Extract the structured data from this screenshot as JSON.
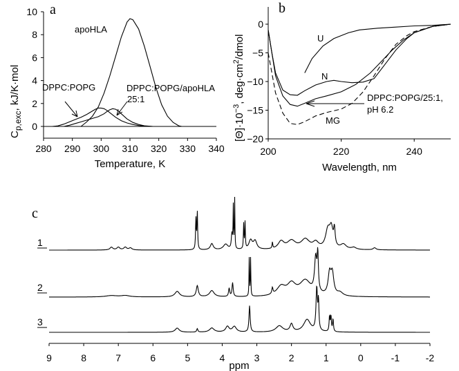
{
  "chart_data": [
    {
      "panel": "a",
      "type": "line",
      "xlabel": "Temperature, K",
      "ylabel": {
        "main": "C",
        "sub": "p,exc",
        "rest": ", kJ/K·mol"
      },
      "xlim": [
        280,
        340
      ],
      "ylim": [
        0,
        10
      ],
      "xticks": [
        280,
        290,
        300,
        310,
        320,
        330,
        340
      ],
      "yticks": [
        0,
        2,
        4,
        6,
        8,
        10
      ],
      "grid": false,
      "series": [
        {
          "name": "apoHLA",
          "x": [
            293,
            295,
            297,
            299,
            301,
            303,
            305,
            307,
            309,
            310,
            311,
            313,
            315,
            317,
            319,
            321,
            323,
            325,
            327,
            328
          ],
          "y": [
            0,
            0.4,
            0.9,
            1.7,
            2.9,
            4.4,
            6.1,
            7.8,
            9.1,
            9.4,
            9.3,
            8.5,
            7.0,
            5.2,
            3.4,
            1.9,
            0.9,
            0.35,
            0.05,
            0
          ]
        },
        {
          "name": "DPPC:POPG",
          "x": [
            283,
            285,
            287,
            289,
            291,
            293,
            295,
            297,
            298,
            299,
            300,
            301,
            302,
            303,
            305,
            307,
            309,
            311,
            313,
            315,
            318
          ],
          "y": [
            0,
            0.05,
            0.2,
            0.4,
            0.6,
            0.8,
            1.05,
            1.35,
            1.5,
            1.6,
            1.6,
            1.55,
            1.4,
            1.2,
            0.8,
            0.5,
            0.3,
            0.17,
            0.08,
            0.03,
            0
          ]
        },
        {
          "name": "DPPC:POPG/apoHLA 25:1",
          "x": [
            287,
            289,
            291,
            293,
            295,
            297,
            299,
            301,
            302,
            303,
            304,
            305,
            306,
            307,
            309,
            311,
            313,
            315,
            318
          ],
          "y": [
            0,
            0.1,
            0.25,
            0.4,
            0.55,
            0.7,
            0.85,
            1.1,
            1.3,
            1.45,
            1.55,
            1.5,
            1.35,
            1.1,
            0.65,
            0.35,
            0.17,
            0.06,
            0
          ]
        }
      ],
      "annotations": [
        "apoHLA",
        "DPPC:POPG",
        "DPPC:POPG/apoHLA",
        "25:1"
      ]
    },
    {
      "panel": "b",
      "type": "line",
      "xlabel": "Wavelength, nm",
      "ylabel": {
        "main": "[Θ]·10",
        "sup": "−3",
        "mid": ", deg·cm",
        "sup2": "2",
        "rest": "/dmol"
      },
      "xlim": [
        200,
        250
      ],
      "ylim": [
        -20,
        0
      ],
      "xticks": [
        200,
        220,
        240
      ],
      "yticks": [
        0,
        -5,
        -10,
        -15,
        -20
      ],
      "grid": false,
      "series": [
        {
          "name": "U",
          "dashed": false,
          "x": [
            210,
            212,
            215,
            218,
            222,
            225,
            230,
            235,
            240,
            245,
            250
          ],
          "y": [
            -8.5,
            -6,
            -3.8,
            -2.5,
            -1.5,
            -1,
            -0.7,
            -0.5,
            -0.3,
            -0.2,
            0
          ]
        },
        {
          "name": "N",
          "dashed": false,
          "x": [
            200,
            201,
            202,
            204,
            206,
            208,
            210,
            213,
            216,
            218,
            220,
            223,
            226,
            229,
            232,
            235,
            238,
            240,
            245,
            250
          ],
          "y": [
            -1,
            -5,
            -8.5,
            -11.5,
            -12.3,
            -12.4,
            -11.6,
            -10.6,
            -10,
            -9.8,
            -10,
            -10.2,
            -10.1,
            -9.5,
            -7,
            -4.5,
            -2.5,
            -1.5,
            -0.4,
            0
          ]
        },
        {
          "name": "DPPC:POPG/25:1, pH 6.2",
          "dashed": false,
          "x": [
            200,
            201,
            202,
            204,
            206,
            208,
            210,
            213,
            216,
            220,
            224,
            228,
            231,
            234,
            237,
            240,
            245,
            250
          ],
          "y": [
            -1,
            -5,
            -9,
            -12.5,
            -14,
            -14.3,
            -13.8,
            -13,
            -12.5,
            -11.8,
            -10.5,
            -8.5,
            -6.5,
            -4.5,
            -2.8,
            -1.5,
            -0.4,
            0
          ]
        },
        {
          "name": "MG",
          "dashed": true,
          "x": [
            200,
            202,
            204,
            206,
            208,
            210,
            213,
            216,
            220,
            223,
            226,
            229,
            232,
            235,
            238,
            240,
            245,
            250
          ],
          "y": [
            -5,
            -12,
            -15.5,
            -17.3,
            -17.5,
            -17,
            -16,
            -15.4,
            -14.8,
            -13.8,
            -11.8,
            -9,
            -6,
            -3.5,
            -2,
            -1.3,
            -0.4,
            0
          ]
        }
      ],
      "annotations": [
        "U",
        "N",
        "MG",
        "DPPC:POPG/25:1,",
        "pH 6.2"
      ]
    },
    {
      "panel": "c",
      "type": "line",
      "xlabel": "ppm",
      "xlim": [
        9,
        -2
      ],
      "xticks": [
        9,
        8,
        7,
        6,
        5,
        4,
        3,
        2,
        1,
        0,
        -1,
        -2
      ],
      "grid": false,
      "series": [
        {
          "name": "1",
          "peaks_ppm_height_width": [
            [
              7.2,
              4,
              0.05
            ],
            [
              7.0,
              4,
              0.05
            ],
            [
              6.8,
              4,
              0.05
            ],
            [
              6.65,
              3,
              0.05
            ],
            [
              4.76,
              45,
              0.012
            ],
            [
              4.72,
              55,
              0.012
            ],
            [
              4.3,
              9,
              0.05
            ],
            [
              3.9,
              8,
              0.08
            ],
            [
              3.72,
              22,
              0.02
            ],
            [
              3.68,
              60,
              0.008
            ],
            [
              3.64,
              72,
              0.008
            ],
            [
              3.38,
              36,
              0.01
            ],
            [
              3.34,
              38,
              0.01
            ],
            [
              3.18,
              13,
              0.06
            ],
            [
              3.05,
              12,
              0.06
            ],
            [
              2.55,
              9,
              0.012
            ],
            [
              2.3,
              11,
              0.1
            ],
            [
              2.0,
              12,
              0.15
            ],
            [
              1.6,
              14,
              0.15
            ],
            [
              1.3,
              9,
              0.1
            ],
            [
              0.95,
              26,
              0.08
            ],
            [
              0.85,
              26,
              0.06
            ],
            [
              0.76,
              24,
              0.025
            ],
            [
              0.5,
              7,
              0.1
            ],
            [
              0.2,
              3,
              0.08
            ],
            [
              -0.4,
              3,
              0.05
            ]
          ]
        },
        {
          "name": "2",
          "peaks_ppm_height_width": [
            [
              7.2,
              2,
              0.2
            ],
            [
              6.8,
              2,
              0.15
            ],
            [
              5.3,
              8,
              0.08
            ],
            [
              4.72,
              16,
              0.035
            ],
            [
              4.3,
              9,
              0.08
            ],
            [
              3.8,
              12,
              0.02
            ],
            [
              3.7,
              20,
              0.02
            ],
            [
              3.22,
              55,
              0.008
            ],
            [
              3.18,
              55,
              0.008
            ],
            [
              2.55,
              9,
              0.02
            ],
            [
              2.3,
              13,
              0.15
            ],
            [
              2.0,
              16,
              0.15
            ],
            [
              1.6,
              22,
              0.2
            ],
            [
              1.3,
              50,
              0.04
            ],
            [
              1.24,
              50,
              0.02
            ],
            [
              0.9,
              30,
              0.05
            ],
            [
              0.82,
              30,
              0.05
            ],
            [
              0.6,
              5,
              0.1
            ]
          ]
        },
        {
          "name": "3",
          "peaks_ppm_height_width": [
            [
              5.3,
              6,
              0.07
            ],
            [
              4.72,
              5,
              0.02
            ],
            [
              4.3,
              6,
              0.08
            ],
            [
              3.85,
              8,
              0.06
            ],
            [
              3.65,
              8,
              0.07
            ],
            [
              3.21,
              38,
              0.02
            ],
            [
              2.35,
              9,
              0.12
            ],
            [
              2.0,
              11,
              0.05
            ],
            [
              1.55,
              18,
              0.12
            ],
            [
              1.27,
              62,
              0.025
            ],
            [
              1.22,
              40,
              0.015
            ],
            [
              0.9,
              22,
              0.015
            ],
            [
              0.86,
              22,
              0.015
            ],
            [
              0.8,
              18,
              0.015
            ]
          ]
        }
      ]
    }
  ],
  "labels": {
    "a": "a",
    "b": "b",
    "c": "c"
  }
}
